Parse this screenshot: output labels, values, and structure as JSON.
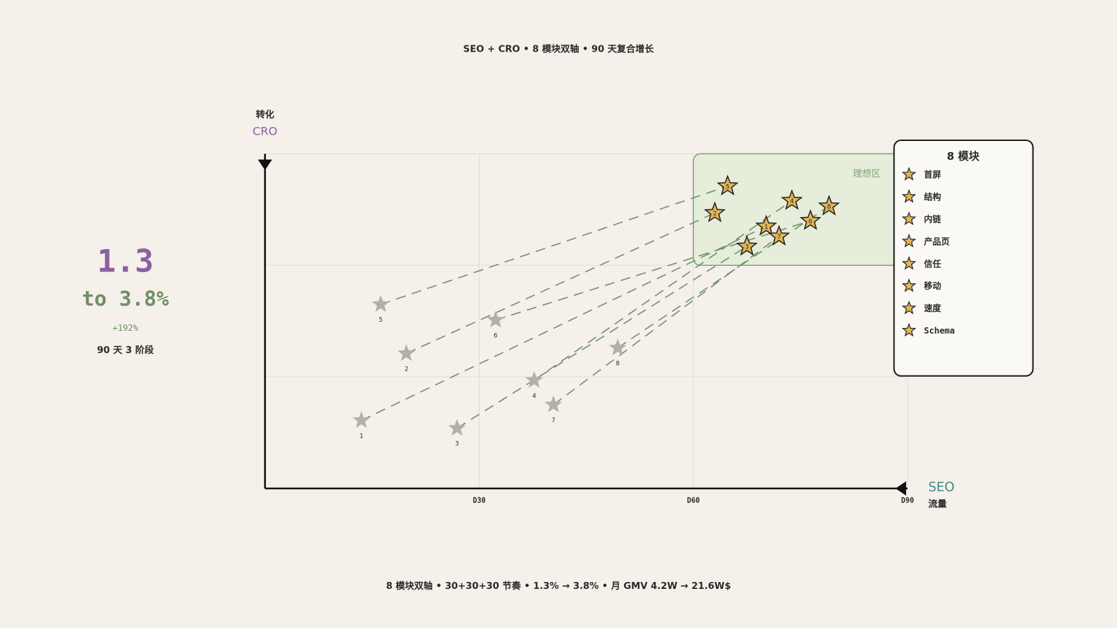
{
  "chart_data": {
    "type": "scatter",
    "title": "SEO + CRO • 8 模块双轴 • 90 天复合增长",
    "footer": "8 模块双轴 • 30+30+30 节奏 • 1.3% → 3.8% • 月 GMV 4.2W → 21.6W$",
    "y_label": "转化",
    "y_axis_name": "CRO",
    "x_axis_name": "SEO",
    "x_label": "流量",
    "summary": {
      "value": "1.3",
      "target": "to 3.8%",
      "change": "+192%",
      "note": "90 天 3 阶段"
    },
    "xlim": [
      0,
      90
    ],
    "ylim": [
      0,
      3
    ],
    "xticks": [
      {
        "value": 30,
        "label": "D30"
      },
      {
        "value": 60,
        "label": "D60"
      },
      {
        "value": 90,
        "label": "D90"
      }
    ],
    "yticks": [
      1,
      2
    ],
    "ideal_zone": {
      "label": "理想区",
      "x": [
        60,
        90
      ],
      "y": [
        2,
        3
      ]
    },
    "legend_title": "8 模块",
    "modules": [
      {
        "name": "首屏",
        "label": "1",
        "start": [
          13.5,
          0.61
        ],
        "end": [
          70.2,
          2.35
        ]
      },
      {
        "name": "结构",
        "label": "2",
        "start": [
          19.8,
          1.21
        ],
        "end": [
          63.0,
          2.47
        ]
      },
      {
        "name": "内链",
        "label": "3",
        "start": [
          26.9,
          0.54
        ],
        "end": [
          67.5,
          2.17
        ]
      },
      {
        "name": "产品页",
        "label": "4",
        "start": [
          37.7,
          0.97
        ],
        "end": [
          73.8,
          2.58
        ]
      },
      {
        "name": "信任",
        "label": "5",
        "start": [
          16.2,
          1.65
        ],
        "end": [
          64.8,
          2.71
        ]
      },
      {
        "name": "移动",
        "label": "6",
        "start": [
          32.3,
          1.51
        ],
        "end": [
          76.4,
          2.4
        ]
      },
      {
        "name": "速度",
        "label": "7",
        "start": [
          40.4,
          0.75
        ],
        "end": [
          72.0,
          2.26
        ]
      },
      {
        "name": "Schema",
        "label": "8",
        "start": [
          49.4,
          1.26
        ],
        "end": [
          79.0,
          2.53
        ]
      }
    ],
    "start_color": "#b4b0a8",
    "end_color": "#e2b457",
    "line_color": "#6f9366",
    "zone_color": "#e6eedb"
  }
}
